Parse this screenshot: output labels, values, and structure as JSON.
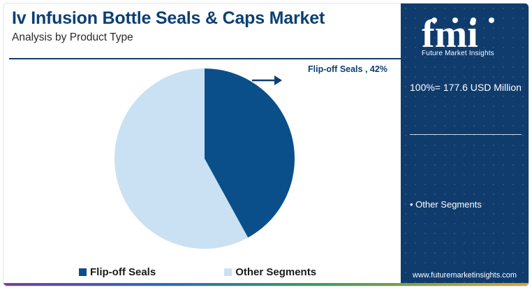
{
  "header": {
    "title": "Iv Infusion Bottle Seals & Caps Market",
    "subtitle": "Analysis by Product Type"
  },
  "chart_data": {
    "type": "pie",
    "categories": [
      "Flip-off Seals",
      "Other Segments"
    ],
    "values": [
      42,
      58
    ],
    "colors": [
      "#0b4f8a",
      "#c9e1f3"
    ],
    "callout": "Flip-off Seals , 42%",
    "legend_position": "bottom"
  },
  "legend": {
    "items": [
      {
        "label": "Flip-off Seals",
        "color": "#0b4f8a"
      },
      {
        "label": "Other Segments",
        "color": "#c9e1f3"
      }
    ]
  },
  "side_panel": {
    "logo_text": "fmi",
    "logo_caption": "Future Market Insights",
    "total": "100%= 177.6 USD Million",
    "segment_note": "• Other Segments",
    "website": "www.futuremarketinsights.com",
    "background_color": "#0f3c6d"
  }
}
